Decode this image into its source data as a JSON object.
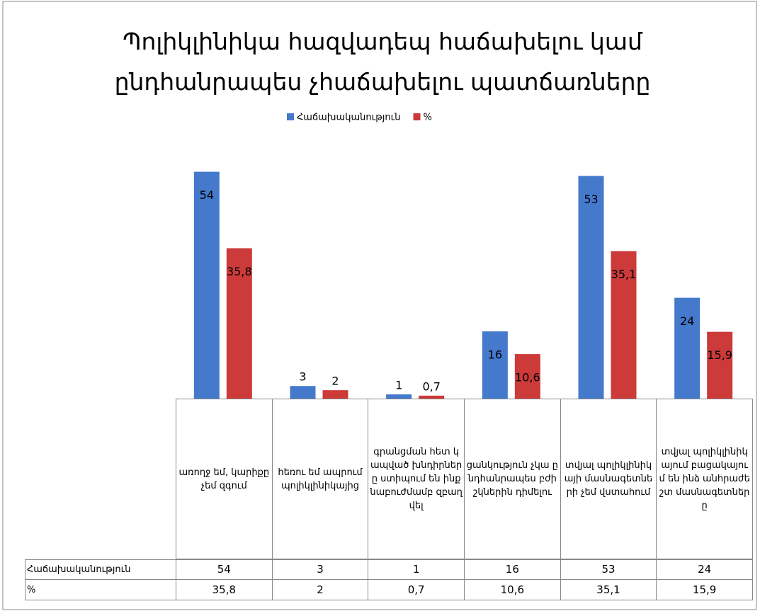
{
  "chart_data": {
    "type": "bar",
    "title": "Պոլիկլինիկա հազվադեպ հաճախելու կամ ընդհանրապես չհաճախելու պատճառները",
    "categories": [
      "առողջ եմ, կարիքը չեմ զգում",
      "հեռու եմ ապրում պոլիկլինիկայից",
      "գրանցման հետ կապված խնդիրները ստիպում են ինքնաբուժմամբ զբաղվել",
      "ցանկություն չկա ընդհանրապես բժիշկներին դիմելու",
      "տվյալ պոլիկլինիկայի մասնագետների չեմ վստահում",
      "տվյալ պոլիկլինիկայում բացակայում են ինձ անհրաժեշտ մասնագետները"
    ],
    "series": [
      {
        "name": "Հաճախականություն",
        "color": "#4479cc",
        "values": [
          54,
          3,
          1,
          16,
          53,
          24
        ]
      },
      {
        "name": "%",
        "color": "#cc3a3a",
        "values": [
          35.8,
          2,
          0.7,
          10.6,
          35.1,
          15.9
        ],
        "value_labels": [
          "35,8",
          "2",
          "0,7",
          "10,6",
          "35,1",
          "15,9"
        ]
      }
    ],
    "ylim": [
      0,
      60
    ],
    "legend": "top"
  }
}
